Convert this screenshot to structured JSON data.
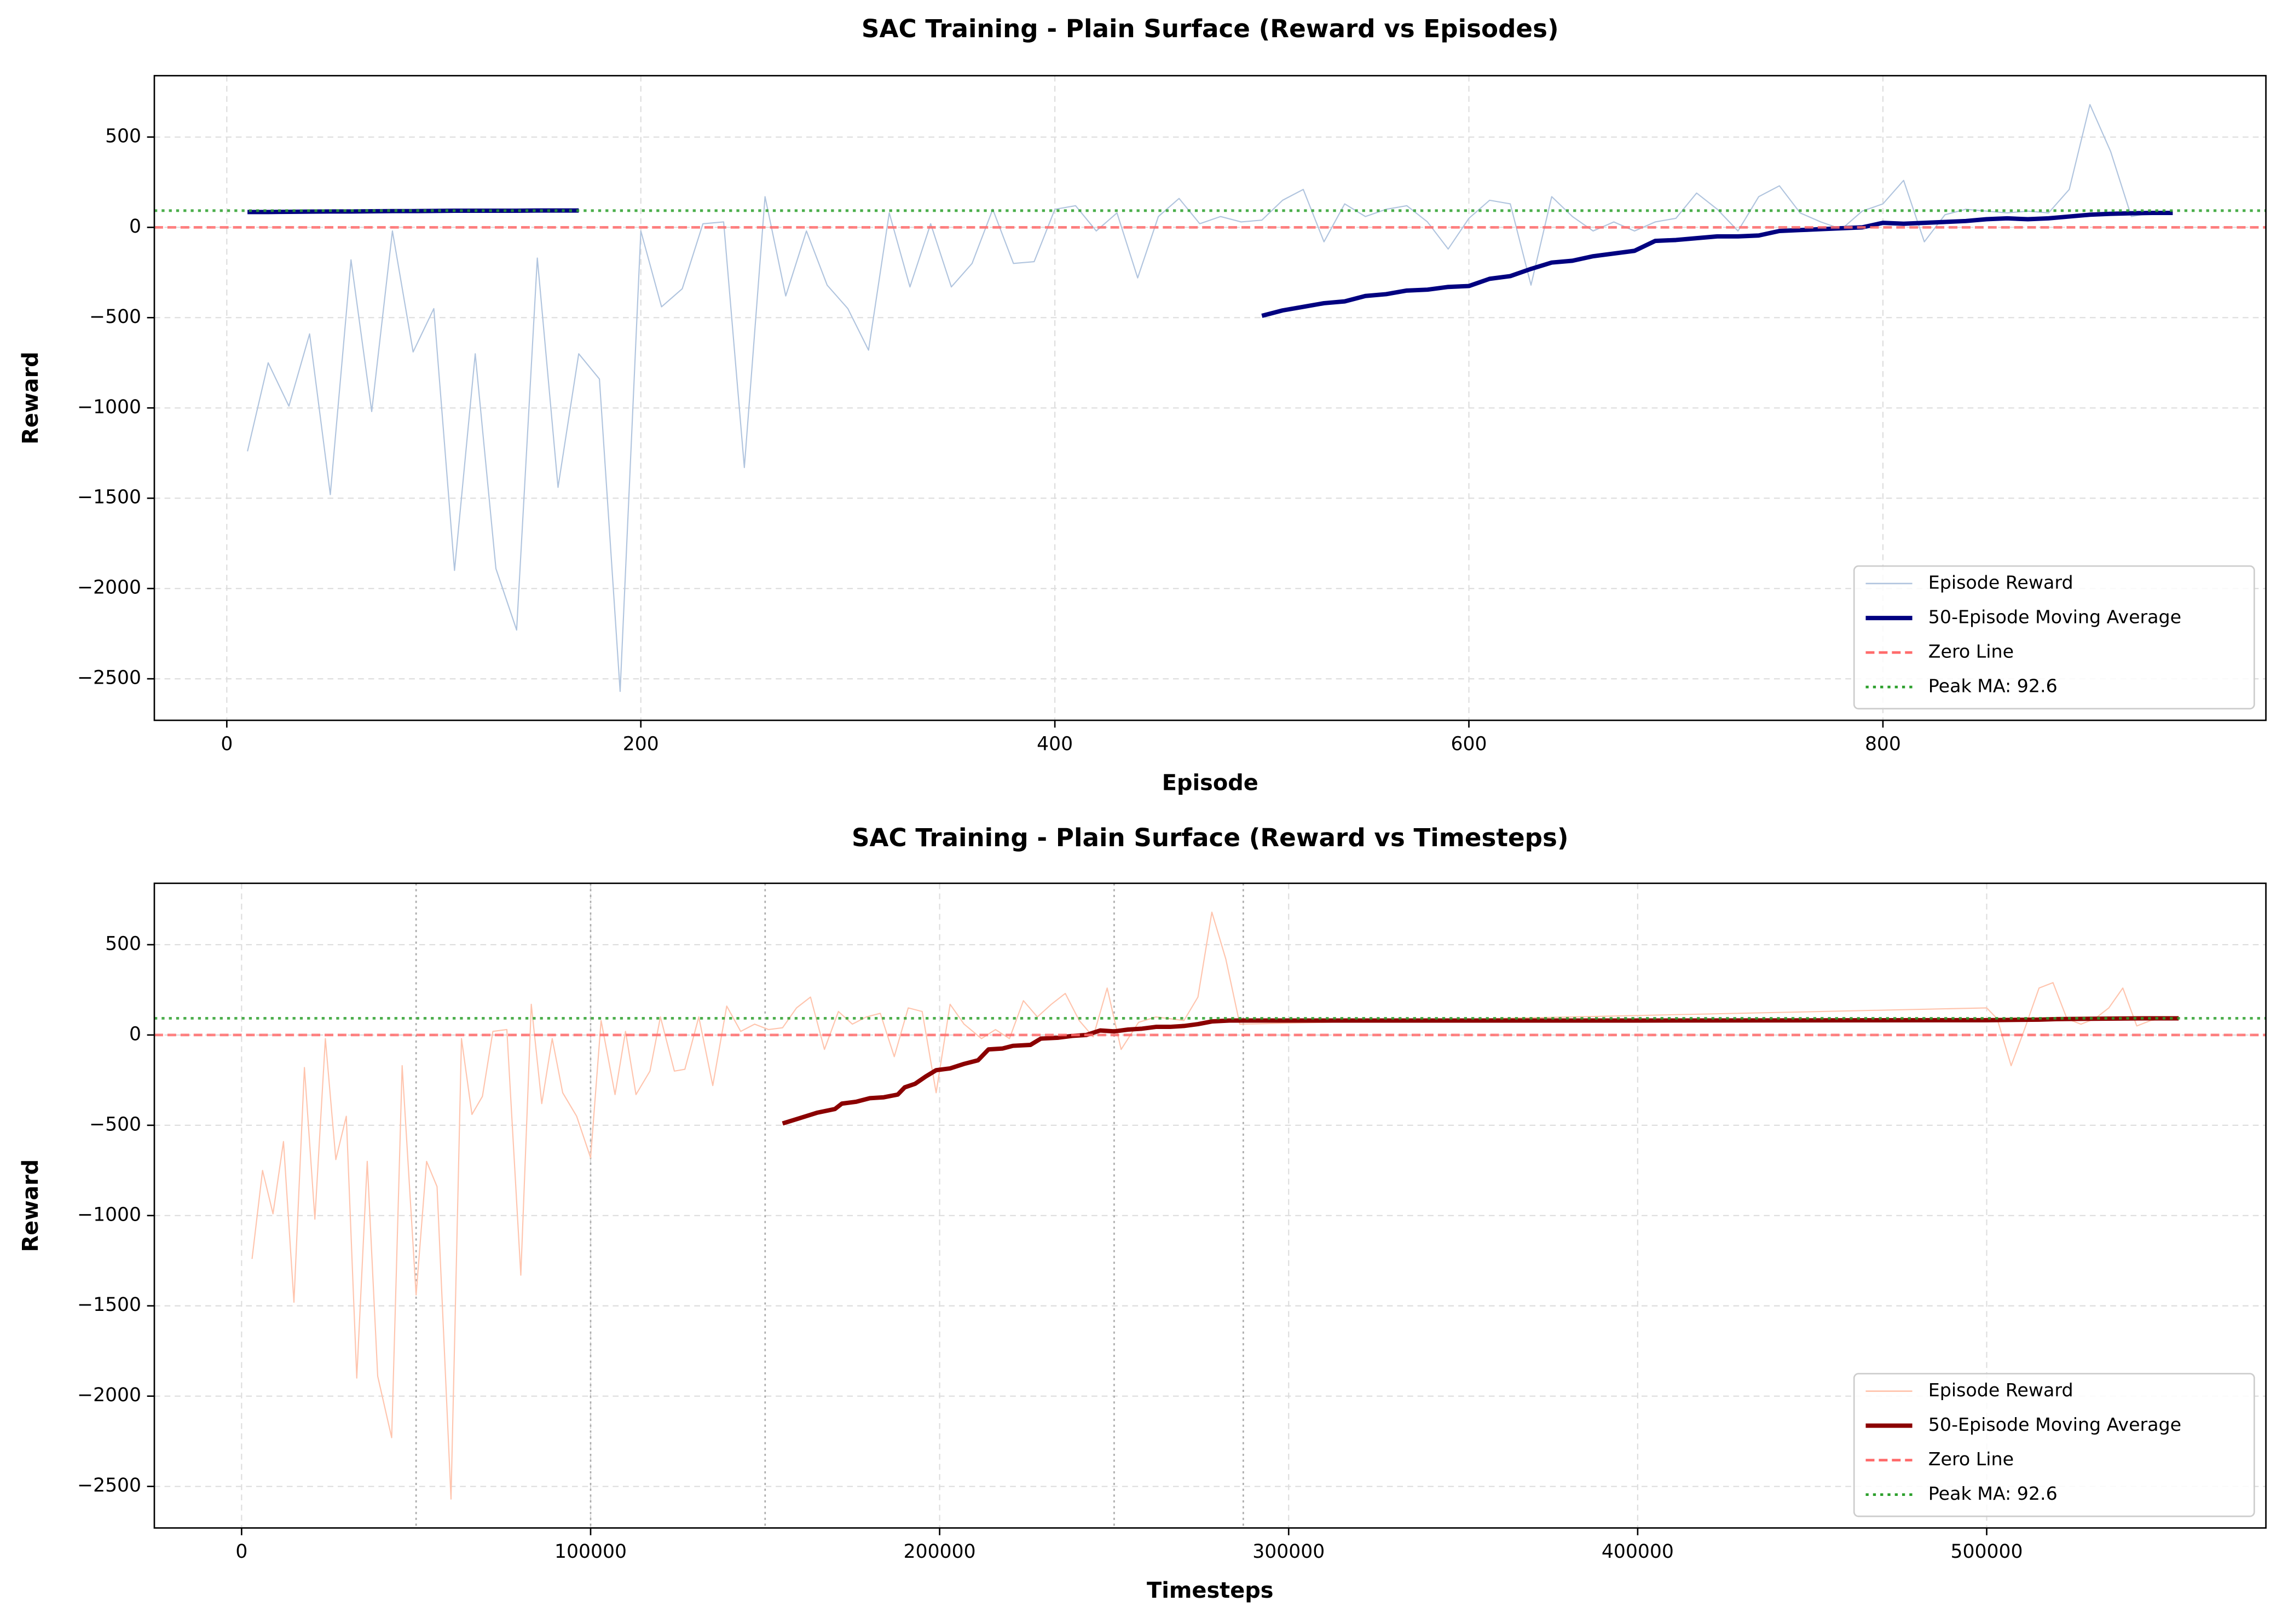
{
  "chart_data": [
    {
      "type": "line",
      "title": "SAC Training - Plain Surface (Reward vs Episodes)",
      "x_label": "Episode",
      "y_label": "Reward",
      "xlim": [
        -35,
        985
      ],
      "xticks": [
        0,
        200,
        400,
        600,
        800
      ],
      "ylim": [
        -2730,
        840
      ],
      "yticks": [
        {
          "value": -2500,
          "label": "−2500"
        },
        {
          "value": -2000,
          "label": "−2000"
        },
        {
          "value": -1500,
          "label": "−1500"
        },
        {
          "value": -1000,
          "label": "−1000"
        },
        {
          "value": -500,
          "label": "−500"
        },
        0,
        500
      ],
      "grid": true,
      "legend": "lower right",
      "vlines": [],
      "series": [
        {
          "name": "Episode Reward",
          "color": "#b0c4de",
          "width": 0.8,
          "x": [
            10,
            20,
            30,
            40,
            50,
            60,
            70,
            80,
            90,
            100,
            110,
            120,
            130,
            140,
            150,
            160,
            170,
            180,
            190,
            200,
            210,
            220,
            230,
            240,
            250,
            260,
            270,
            280,
            290,
            300,
            310,
            320,
            330,
            340,
            350,
            360,
            370,
            380,
            390,
            400,
            410,
            420,
            430,
            440,
            450,
            460,
            470,
            480,
            490,
            500,
            510,
            520,
            530,
            540,
            550,
            560,
            570,
            580,
            590,
            600,
            610,
            620,
            630,
            640,
            650,
            660,
            670,
            680,
            690,
            700,
            710,
            720,
            730,
            740,
            750,
            760,
            770,
            780,
            790,
            800,
            810,
            820,
            830,
            840,
            850,
            860,
            870,
            880,
            890,
            900,
            910,
            920,
            930,
            940
          ],
          "values": [
            -1240,
            -750,
            -990,
            -590,
            -1480,
            -180,
            -1020,
            -20,
            -690,
            -450,
            -1900,
            -700,
            -1890,
            -2230,
            -170,
            -1440,
            -700,
            -840,
            -2570,
            -20,
            -440,
            -340,
            20,
            30,
            -1330,
            170,
            -380,
            -20,
            -320,
            -450,
            -680,
            80,
            -330,
            20,
            -330,
            -200,
            100,
            -200,
            -190,
            100,
            120,
            -20,
            80,
            -280,
            60,
            160,
            20,
            60,
            30,
            40,
            150,
            210,
            -80,
            130,
            60,
            100,
            120,
            30,
            -120,
            50,
            150,
            130,
            -320,
            170,
            60,
            -20,
            30,
            -20,
            30,
            50,
            190,
            100,
            -20,
            170,
            230,
            80,
            30,
            -10,
            90,
            130,
            260,
            -80,
            70,
            100,
            90,
            80,
            90,
            80,
            210,
            680,
            420,
            60,
            80,
            80
          ]
        },
        {
          "name": "50-Episode Moving Average",
          "color": "#000080",
          "width": 3,
          "x": [
            10,
            20,
            30,
            40,
            50,
            60,
            70,
            80,
            90,
            100,
            110,
            120,
            130,
            140,
            150,
            160,
            170,
            180,
            190,
            200,
            210,
            220,
            230,
            240,
            250,
            260,
            270,
            280,
            290,
            300,
            310,
            320,
            330,
            340,
            350,
            360,
            370,
            380,
            390,
            400,
            410,
            420,
            430,
            440,
            450,
            460,
            470,
            480,
            490,
            500,
            510,
            520,
            530,
            540,
            550,
            560,
            570,
            580,
            590,
            600,
            610,
            620,
            630,
            640,
            650,
            660,
            670,
            680,
            690,
            700,
            710,
            720,
            730,
            740,
            750,
            760,
            770,
            780,
            790,
            800,
            810,
            820,
            830,
            840,
            850,
            860,
            870,
            880,
            890,
            900,
            910,
            920,
            930,
            940
          ],
          "values": [
            85,
            85,
            86,
            87,
            88,
            88,
            89,
            90,
            90,
            91,
            92,
            92,
            92,
            92,
            93,
            93,
            93,
            null,
            null,
            null,
            null,
            null,
            null,
            null,
            null,
            null,
            null,
            null,
            null,
            null,
            null,
            null,
            null,
            null,
            null,
            null,
            null,
            null,
            null,
            null,
            null,
            null,
            null,
            null,
            null,
            null,
            null,
            null,
            null,
            -490,
            -460,
            -440,
            -420,
            -410,
            -380,
            -370,
            -350,
            -345,
            -330,
            -325,
            -285,
            -270,
            -230,
            -195,
            -185,
            -160,
            -145,
            -130,
            -75,
            -70,
            -60,
            -50,
            -50,
            -45,
            -20,
            -15,
            -10,
            -5,
            0,
            25,
            20,
            25,
            30,
            35,
            45,
            50,
            45,
            50,
            60,
            70,
            75,
            78,
            80,
            80
          ]
        }
      ],
      "hlines": [
        {
          "name": "Zero Line",
          "value": 0,
          "color": "#ff6b6b",
          "dash": "6 3"
        },
        {
          "name": "Peak MA: 92.6",
          "value": 92.6,
          "color": "#2ca02c",
          "dash": "2 3"
        }
      ]
    },
    {
      "type": "line",
      "title": "SAC Training - Plain Surface (Reward vs Timesteps)",
      "x_label": "Timesteps",
      "y_label": "Reward",
      "xlim": [
        -25000,
        580000
      ],
      "xticks": [
        0,
        100000,
        200000,
        300000,
        400000,
        500000
      ],
      "ylim": [
        -2730,
        840
      ],
      "yticks": [
        {
          "value": -2500,
          "label": "−2500"
        },
        {
          "value": -2000,
          "label": "−2000"
        },
        {
          "value": -1500,
          "label": "−1500"
        },
        {
          "value": -1000,
          "label": "−1000"
        },
        {
          "value": -500,
          "label": "−500"
        },
        0,
        500
      ],
      "grid": true,
      "legend": "lower right",
      "vlines": [
        50000,
        100000,
        150000,
        250000,
        287000
      ],
      "series": [
        {
          "name": "Episode Reward",
          "color": "#ffc4ad",
          "width": 0.8,
          "x": [
            3000,
            6000,
            9000,
            12000,
            15000,
            18000,
            21000,
            24000,
            27000,
            30000,
            33000,
            36000,
            39000,
            43000,
            46000,
            50000,
            53000,
            56000,
            60000,
            63000,
            66000,
            69000,
            72000,
            76000,
            80000,
            83000,
            86000,
            89000,
            92000,
            96000,
            100000,
            103000,
            107000,
            110000,
            113000,
            117000,
            120000,
            124000,
            127000,
            131000,
            135000,
            139000,
            143000,
            147000,
            151000,
            155000,
            159000,
            163000,
            167000,
            171000,
            175000,
            179000,
            183000,
            187000,
            191000,
            195000,
            199000,
            203000,
            207000,
            212000,
            216000,
            220000,
            224000,
            228000,
            232000,
            236000,
            240000,
            244000,
            248000,
            252000,
            257000,
            262000,
            266000,
            270000,
            274000,
            278000,
            282000,
            286000,
            500000,
            503000,
            507000,
            511000,
            515000,
            519000,
            523000,
            527000,
            531000,
            535000,
            539000,
            543000,
            547000,
            551000,
            555000
          ],
          "values": [
            -1240,
            -750,
            -990,
            -590,
            -1480,
            -180,
            -1020,
            -20,
            -690,
            -450,
            -1900,
            -700,
            -1890,
            -2230,
            -170,
            -1440,
            -700,
            -840,
            -2570,
            -20,
            -440,
            -340,
            20,
            30,
            -1330,
            170,
            -380,
            -20,
            -320,
            -450,
            -680,
            80,
            -330,
            20,
            -330,
            -200,
            100,
            -200,
            -190,
            100,
            -280,
            160,
            20,
            60,
            30,
            40,
            150,
            210,
            -80,
            130,
            60,
            100,
            120,
            -120,
            150,
            130,
            -320,
            170,
            60,
            -20,
            30,
            -20,
            190,
            100,
            170,
            230,
            80,
            -10,
            260,
            -80,
            70,
            100,
            90,
            80,
            210,
            680,
            420,
            60,
            150,
            90,
            -170,
            40,
            260,
            290,
            90,
            60,
            90,
            150,
            260,
            50,
            80,
            90,
            90
          ]
        },
        {
          "name": "50-Episode Moving Average",
          "color": "#8b0000",
          "width": 3,
          "x": [
            155000,
            160000,
            165000,
            170000,
            172000,
            176000,
            180000,
            184000,
            188000,
            190000,
            193000,
            196000,
            199000,
            203000,
            207000,
            211000,
            214000,
            218000,
            221000,
            226000,
            229000,
            234000,
            238000,
            242000,
            246000,
            250000,
            254000,
            258000,
            262000,
            266000,
            270000,
            274000,
            278000,
            283000,
            287000,
            400000,
            500000,
            515000,
            520000,
            530000,
            545000,
            555000
          ],
          "values": [
            -490,
            -460,
            -430,
            -410,
            -380,
            -370,
            -350,
            -345,
            -330,
            -290,
            -270,
            -230,
            -195,
            -185,
            -160,
            -140,
            -80,
            -75,
            -60,
            -55,
            -20,
            -15,
            -5,
            0,
            25,
            20,
            30,
            35,
            45,
            45,
            50,
            60,
            75,
            80,
            80,
            80,
            82,
            85,
            88,
            90,
            92,
            92
          ]
        }
      ],
      "hlines": [
        {
          "name": "Zero Line",
          "value": 0,
          "color": "#ff6b6b",
          "dash": "6 3"
        },
        {
          "name": "Peak MA: 92.6",
          "value": 92.6,
          "color": "#2ca02c",
          "dash": "2 3"
        }
      ]
    }
  ]
}
